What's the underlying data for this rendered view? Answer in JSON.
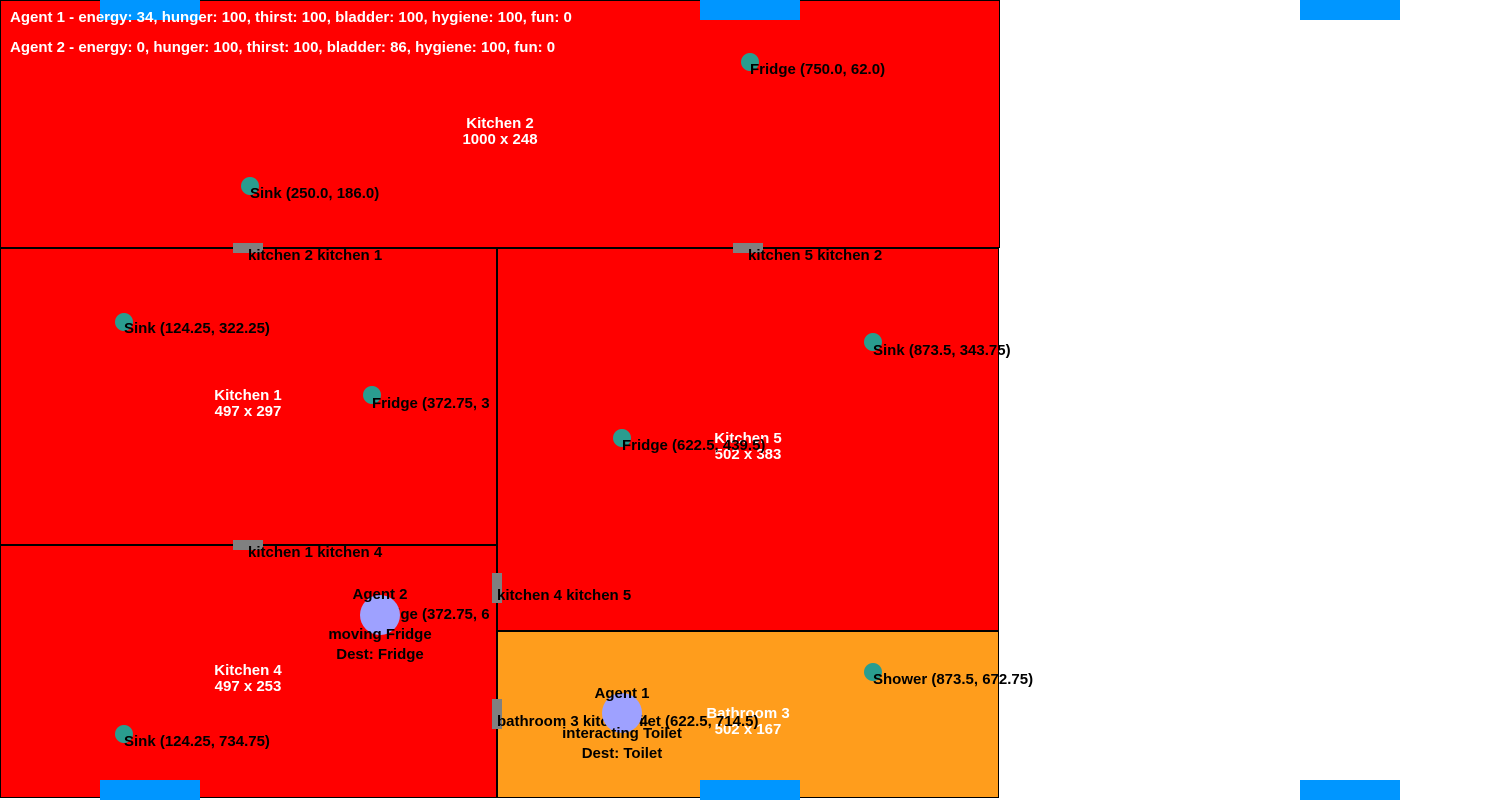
{
  "colors": {
    "kitchen": "#ff0000",
    "bathroom": "#ff9d1c",
    "window": "#0096ff",
    "door": "#808080",
    "object": "#2a9d8f",
    "agent": "#9ea1ff",
    "wall": "#000000"
  },
  "status": {
    "agent1": "Agent 1 - energy: 34, hunger: 100, thirst: 100, bladder: 100, hygiene: 100, fun: 0",
    "agent2": "Agent 2 - energy: 0, hunger: 100, thirst: 100, bladder: 86, hygiene: 100, fun: 0"
  },
  "rooms": {
    "kitchen2": {
      "name": "Kitchen 2",
      "size": "1000 x 248"
    },
    "kitchen1": {
      "name": "Kitchen 1",
      "size": "497 x 297"
    },
    "kitchen5": {
      "name": "Kitchen 5",
      "size": "502 x 383"
    },
    "kitchen4": {
      "name": "Kitchen 4",
      "size": "497 x 253"
    },
    "bathroom3": {
      "name": "Bathroom 3",
      "size": "502 x 167"
    }
  },
  "doors": {
    "k2k1": "kitchen 2 kitchen 1",
    "k5k2": "kitchen 5 kitchen 2",
    "k1k4": "kitchen 1 kitchen 4",
    "k4k5": "kitchen 4 kitchen 5",
    "b3k4": "bathroom 3 kitchen 4"
  },
  "objects": {
    "k2_fridge": "Fridge (750.0, 62.0)",
    "k2_sink": "Sink (250.0, 186.0)",
    "k1_sink": "Sink (124.25, 322.25)",
    "k1_fridge": "Fridge (372.75, 3",
    "k5_sink": "Sink (873.5, 343.75)",
    "k5_fridge": "Fridge (622.5, 439.5)",
    "k4_fridge": "Fridge (372.75, 6",
    "k4_sink": "Sink (124.25, 734.75)",
    "b3_shower": "Shower (873.5, 672.75)",
    "b3_toilet": "Toilet (622.5, 714.5)"
  },
  "agents": {
    "agent2": {
      "name": "Agent 2",
      "state": "moving Fridge",
      "dest": "Dest: Fridge"
    },
    "agent1": {
      "name": "Agent 1",
      "state": "interacting Toilet",
      "dest": "Dest: Toilet"
    }
  }
}
